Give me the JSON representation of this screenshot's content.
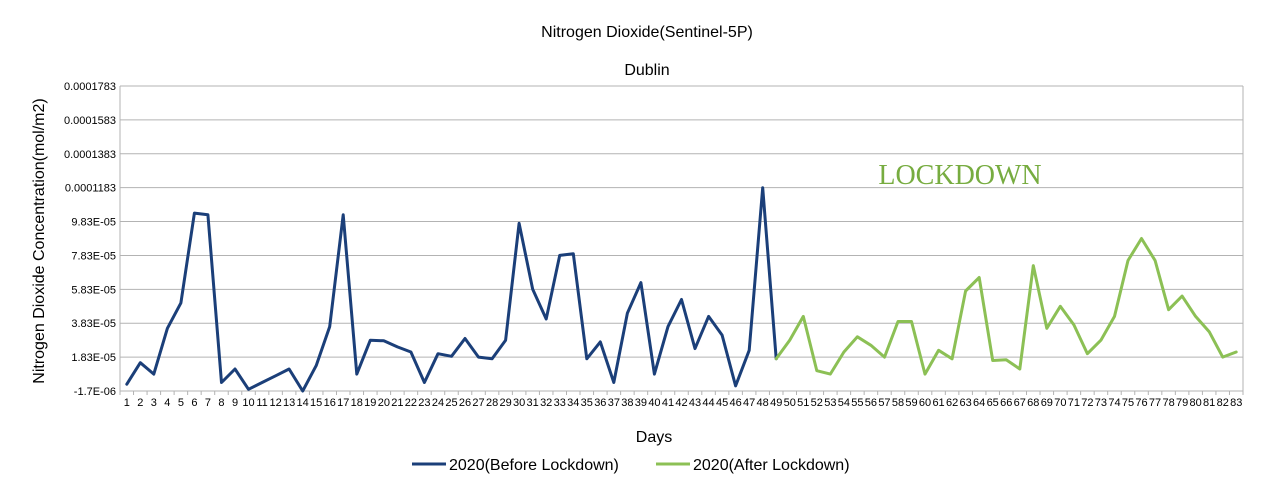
{
  "chart_data": {
    "type": "line",
    "title": "Nitrogen Dioxide(Sentinel-5P)",
    "subtitle": "Dublin",
    "xlabel": "Days",
    "ylabel": "Nitrogen Dioxide Concentration(mol/m2)",
    "y_ticks": [
      "0.0001783",
      "0.0001583",
      "0.0001383",
      "0.0001183",
      "9.83E-05",
      "7.83E-05",
      "5.83E-05",
      "3.83E-05",
      "1.83E-05",
      "-1.7E-06"
    ],
    "y_tick_values": [
      0.0001783,
      0.0001583,
      0.0001383,
      0.0001183,
      9.83e-05,
      7.83e-05,
      5.83e-05,
      3.83e-05,
      1.83e-05,
      -1.7e-06
    ],
    "ylim": [
      -1.7e-06,
      0.0001783
    ],
    "x_ticks": [
      "1",
      "2",
      "3",
      "4",
      "5",
      "6",
      "7",
      "8",
      "9",
      "10",
      "11",
      "12",
      "13",
      "14",
      "15",
      "16",
      "17",
      "18",
      "19",
      "20",
      "21",
      "22",
      "23",
      "24",
      "25",
      "26",
      "27",
      "28",
      "29",
      "30",
      "31",
      "32",
      "33",
      "34",
      "35",
      "36",
      "37",
      "38",
      "39",
      "40",
      "41",
      "42",
      "43",
      "44",
      "45",
      "46",
      "47",
      "48",
      "49",
      "50",
      "51",
      "52",
      "53",
      "54",
      "55",
      "56",
      "57",
      "58",
      "59",
      "60",
      "61",
      "62",
      "63",
      "64",
      "65",
      "66",
      "67",
      "68",
      "69",
      "70",
      "71",
      "72",
      "73",
      "74",
      "75",
      "76",
      "77",
      "78",
      "79",
      "80",
      "81",
      "82",
      "83"
    ],
    "grid": "horizontal",
    "legend_placement": "bottom",
    "annotation": {
      "text": "LOCKDOWN",
      "color": "#77ac40"
    },
    "series": [
      {
        "name": "2020(Before Lockdown)",
        "color": "#1b3f79",
        "x": [
          1,
          2,
          3,
          4,
          5,
          6,
          7,
          8,
          9,
          10,
          11,
          12,
          13,
          14,
          15,
          16,
          17,
          18,
          19,
          20,
          21,
          22,
          23,
          24,
          25,
          26,
          27,
          28,
          29,
          30,
          31,
          32,
          33,
          34,
          35,
          36,
          37,
          38,
          39,
          40,
          41,
          42,
          43,
          44,
          45,
          46,
          47,
          48,
          49
        ],
        "y": [
          2.3e-06,
          1.5e-05,
          8.3e-06,
          3.53e-05,
          5.03e-05,
          0.0001033,
          0.0001023,
          3.3e-06,
          1.13e-05,
          -7e-07,
          3.3e-06,
          7.3e-06,
          1.13e-05,
          -1.7e-06,
          1.33e-05,
          3.63e-05,
          0.0001023,
          8.3e-06,
          2.83e-05,
          2.79e-05,
          2.43e-05,
          2.13e-05,
          3.3e-06,
          2.03e-05,
          1.88e-05,
          2.93e-05,
          1.83e-05,
          1.73e-05,
          2.83e-05,
          9.73e-05,
          5.83e-05,
          4.08e-05,
          7.83e-05,
          7.93e-05,
          1.73e-05,
          2.73e-05,
          3.3e-06,
          4.43e-05,
          6.23e-05,
          8.3e-06,
          3.63e-05,
          5.23e-05,
          2.33e-05,
          4.23e-05,
          3.13e-05,
          1.3e-06,
          2.23e-05,
          0.0001183,
          1.73e-05
        ]
      },
      {
        "name": "2020(After Lockdown)",
        "color": "#8cc055",
        "x": [
          49,
          50,
          51,
          52,
          53,
          54,
          55,
          56,
          57,
          58,
          59,
          60,
          61,
          62,
          63,
          64,
          65,
          66,
          67,
          68,
          69,
          70,
          71,
          72,
          73,
          74,
          75,
          76,
          77,
          78,
          79,
          80,
          81,
          82,
          83
        ],
        "y": [
          1.73e-05,
          2.83e-05,
          4.23e-05,
          1.03e-05,
          8.3e-06,
          2.13e-05,
          3.03e-05,
          2.53e-05,
          1.83e-05,
          3.93e-05,
          3.93e-05,
          8.3e-06,
          2.23e-05,
          1.73e-05,
          5.73e-05,
          6.53e-05,
          1.63e-05,
          1.68e-05,
          1.13e-05,
          7.23e-05,
          3.53e-05,
          4.83e-05,
          3.73e-05,
          2.03e-05,
          2.83e-05,
          4.23e-05,
          7.53e-05,
          8.83e-05,
          7.53e-05,
          4.63e-05,
          5.43e-05,
          4.23e-05,
          3.33e-05,
          1.83e-05,
          2.13e-05
        ]
      }
    ]
  }
}
